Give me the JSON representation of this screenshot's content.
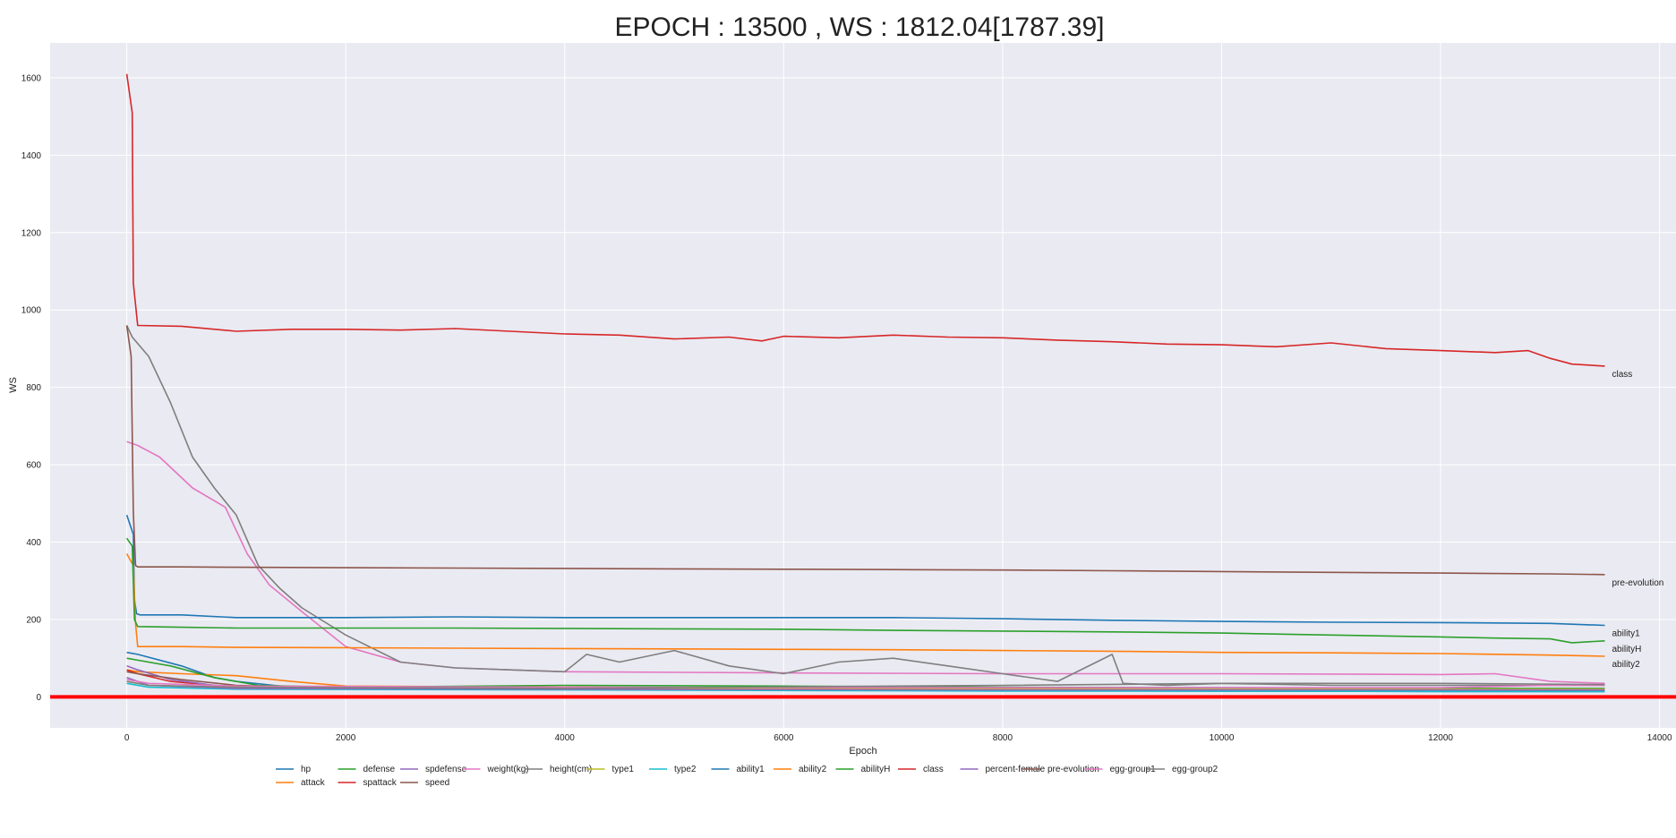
{
  "chart_data": {
    "type": "line",
    "title": "EPOCH : 13500 , WS : 1812.04[1787.39]",
    "xlabel": "Epoch",
    "ylabel": "WS",
    "xlim": [
      -700,
      14150
    ],
    "ylim": [
      -80,
      1690
    ],
    "xticks": [
      0,
      2000,
      4000,
      6000,
      8000,
      10000,
      12000,
      14000
    ],
    "yticks": [
      0,
      200,
      400,
      600,
      800,
      1000,
      1200,
      1400,
      1600
    ],
    "grid": true,
    "legend_position": "bottom",
    "reference_line": {
      "y": 0,
      "color": "#ff0000"
    },
    "series": [
      {
        "name": "hp",
        "color": "#1f77b4",
        "label": "",
        "x": [
          0,
          100,
          500,
          800,
          1000,
          1500,
          2500,
          4000,
          6000,
          8000,
          10000,
          12000,
          13500
        ],
        "y": [
          115,
          110,
          80,
          50,
          40,
          25,
          22,
          20,
          18,
          16,
          15,
          14,
          14
        ]
      },
      {
        "name": "attack",
        "color": "#ff7f0e",
        "label": "",
        "x": [
          0,
          100,
          500,
          1000,
          1500,
          2000,
          4000,
          6000,
          8000,
          10000,
          12000,
          13500
        ],
        "y": [
          70,
          65,
          60,
          55,
          40,
          28,
          25,
          24,
          22,
          20,
          20,
          20
        ]
      },
      {
        "name": "defense",
        "color": "#2ca02c",
        "label": "",
        "x": [
          0,
          100,
          400,
          800,
          1200,
          2000,
          4000,
          6000,
          8000,
          10000,
          12000,
          13500
        ],
        "y": [
          100,
          95,
          80,
          50,
          30,
          25,
          30,
          28,
          25,
          24,
          22,
          22
        ]
      },
      {
        "name": "spattack",
        "color": "#d62728",
        "label": "",
        "x": [
          0,
          100,
          400,
          1000,
          2000,
          4000,
          6000,
          8000,
          10000,
          12000,
          13500
        ],
        "y": [
          70,
          60,
          40,
          25,
          22,
          20,
          20,
          18,
          18,
          18,
          18
        ]
      },
      {
        "name": "spdefense",
        "color": "#9467bd",
        "label": "",
        "x": [
          0,
          100,
          400,
          800,
          1500,
          3000,
          6000,
          9000,
          12000,
          13500
        ],
        "y": [
          80,
          70,
          45,
          30,
          22,
          20,
          18,
          17,
          16,
          16
        ]
      },
      {
        "name": "speed",
        "color": "#8c564b",
        "label": "",
        "x": [
          0,
          100,
          500,
          1000,
          2000,
          4000,
          6000,
          8000,
          10000,
          12000,
          13500
        ],
        "y": [
          65,
          60,
          45,
          30,
          22,
          20,
          19,
          18,
          18,
          17,
          17
        ]
      },
      {
        "name": "weight(kg)",
        "color": "#e377c2",
        "label": "",
        "x": [
          0,
          100,
          300,
          600,
          900,
          1100,
          1300,
          1600,
          2000,
          2500,
          3000,
          4000,
          6000,
          8000,
          10000,
          12000,
          12500,
          13000,
          13500
        ],
        "y": [
          660,
          650,
          620,
          540,
          490,
          370,
          290,
          220,
          130,
          90,
          75,
          65,
          62,
          60,
          60,
          58,
          60,
          40,
          35
        ]
      },
      {
        "name": "height(cm)",
        "color": "#7f7f7f",
        "label": "",
        "x": [
          0,
          50,
          200,
          400,
          600,
          800,
          1000,
          1200,
          1400,
          1600,
          2000,
          2500,
          3000,
          3500,
          4000,
          4200,
          4500,
          5000,
          5500,
          6000,
          6500,
          7000,
          7500,
          8000,
          8500,
          9000,
          9100,
          9500,
          10000,
          11000,
          12000,
          13500
        ],
        "y": [
          960,
          930,
          880,
          760,
          620,
          540,
          470,
          340,
          280,
          230,
          160,
          90,
          75,
          70,
          65,
          110,
          90,
          120,
          80,
          60,
          90,
          100,
          80,
          60,
          40,
          110,
          35,
          30,
          35,
          30,
          30,
          30
        ]
      },
      {
        "name": "type1",
        "color": "#bcbd22",
        "label": "",
        "x": [
          0,
          200,
          1000,
          4000,
          8000,
          13500
        ],
        "y": [
          40,
          30,
          25,
          22,
          20,
          20
        ]
      },
      {
        "name": "type2",
        "color": "#17becf",
        "label": "",
        "x": [
          0,
          200,
          1000,
          4000,
          8000,
          13500
        ],
        "y": [
          35,
          25,
          20,
          18,
          15,
          14
        ]
      },
      {
        "name": "ability1",
        "color": "#1f77b4",
        "label": "ability1",
        "x": [
          0,
          60,
          70,
          90,
          120,
          500,
          1000,
          2000,
          3000,
          4000,
          5000,
          6000,
          7000,
          8000,
          9000,
          10000,
          11000,
          12000,
          13000,
          13500
        ],
        "y": [
          470,
          420,
          250,
          215,
          212,
          212,
          205,
          205,
          207,
          205,
          205,
          205,
          205,
          202,
          198,
          195,
          193,
          192,
          190,
          185
        ]
      },
      {
        "name": "ability2",
        "color": "#ff7f0e",
        "label": "ability2",
        "x": [
          0,
          60,
          80,
          100,
          500,
          1000,
          2000,
          3000,
          4000,
          5000,
          6000,
          7000,
          8000,
          9000,
          10000,
          11000,
          12000,
          13000,
          13500
        ],
        "y": [
          370,
          340,
          190,
          130,
          130,
          128,
          127,
          126,
          125,
          124,
          123,
          122,
          120,
          118,
          115,
          114,
          112,
          108,
          105
        ]
      },
      {
        "name": "abilityH",
        "color": "#2ca02c",
        "label": "abilityH",
        "x": [
          0,
          50,
          70,
          100,
          500,
          1000,
          2000,
          3000,
          4000,
          5000,
          6000,
          7000,
          8000,
          9000,
          10000,
          11000,
          12000,
          12500,
          13000,
          13200,
          13500
        ],
        "y": [
          410,
          390,
          200,
          182,
          180,
          178,
          178,
          178,
          177,
          176,
          175,
          172,
          170,
          168,
          165,
          160,
          155,
          152,
          150,
          140,
          145
        ]
      },
      {
        "name": "class",
        "color": "#d62728",
        "label": "class",
        "x": [
          0,
          50,
          60,
          100,
          500,
          1000,
          1500,
          2000,
          2500,
          3000,
          3500,
          4000,
          4500,
          5000,
          5500,
          5800,
          6000,
          6500,
          7000,
          7500,
          8000,
          8500,
          9000,
          9500,
          10000,
          10500,
          11000,
          11500,
          12000,
          12500,
          12800,
          13000,
          13200,
          13500
        ],
        "y": [
          1610,
          1510,
          1070,
          960,
          958,
          945,
          950,
          950,
          948,
          952,
          945,
          938,
          935,
          925,
          930,
          920,
          932,
          928,
          935,
          930,
          928,
          922,
          918,
          912,
          910,
          905,
          915,
          900,
          895,
          890,
          895,
          875,
          860,
          855
        ]
      },
      {
        "name": "percent-female",
        "color": "#9467bd",
        "label": "",
        "x": [
          0,
          200,
          1000,
          4000,
          8000,
          13500
        ],
        "y": [
          50,
          30,
          22,
          20,
          18,
          18
        ]
      },
      {
        "name": "pre-evolution",
        "color": "#8c564b",
        "label": "pre-evolution",
        "x": [
          0,
          40,
          60,
          80,
          100,
          500,
          1000,
          2000,
          3000,
          4000,
          5000,
          6000,
          7000,
          8000,
          9000,
          10000,
          11000,
          12000,
          13000,
          13500
        ],
        "y": [
          960,
          880,
          480,
          340,
          336,
          336,
          335,
          334,
          333,
          332,
          331,
          330,
          329,
          328,
          326,
          324,
          322,
          320,
          318,
          316
        ]
      },
      {
        "name": "egg-group1",
        "color": "#e377c2",
        "label": "",
        "x": [
          0,
          200,
          1000,
          4000,
          8000,
          12000,
          13000,
          13500
        ],
        "y": [
          45,
          35,
          28,
          25,
          24,
          24,
          30,
          30
        ]
      },
      {
        "name": "egg-group2",
        "color": "#7f7f7f",
        "label": "",
        "x": [
          0,
          200,
          1000,
          4000,
          8000,
          10000,
          12000,
          13500
        ],
        "y": [
          40,
          30,
          25,
          22,
          30,
          35,
          35,
          32
        ]
      }
    ]
  }
}
